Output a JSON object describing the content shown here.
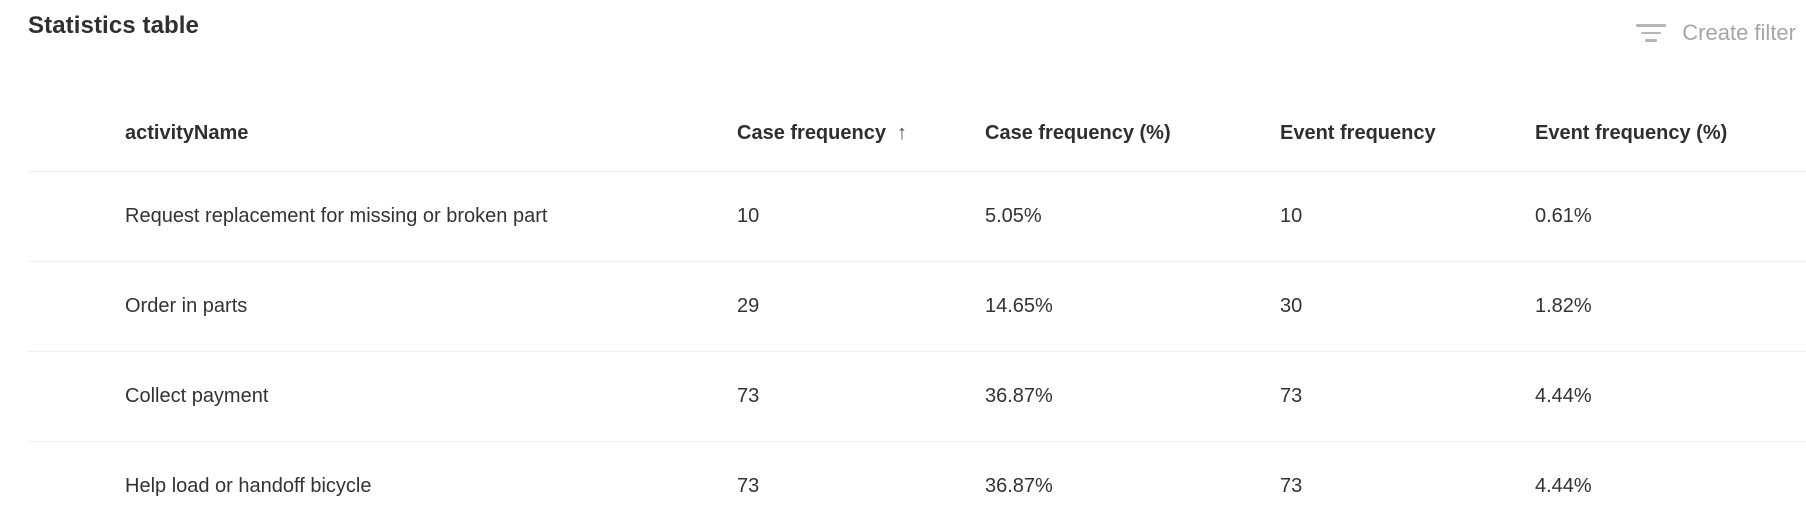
{
  "page": {
    "title": "Statistics table",
    "create_filter_label": "Create filter"
  },
  "table": {
    "columns": [
      {
        "key": "activityName",
        "label": "activityName",
        "sorted": false
      },
      {
        "key": "caseFrequency",
        "label": "Case frequency",
        "sorted": true,
        "sort_direction": "ascending",
        "sort_icon": "↑"
      },
      {
        "key": "caseFrequencyPct",
        "label": "Case frequency (%)",
        "sorted": false
      },
      {
        "key": "eventFrequency",
        "label": "Event frequency",
        "sorted": false
      },
      {
        "key": "eventFrequencyPct",
        "label": "Event frequency (%)",
        "sorted": false
      }
    ],
    "rows": [
      {
        "activityName": "Request replacement for missing or broken part",
        "caseFrequency": "10",
        "caseFrequencyPct": "5.05%",
        "eventFrequency": "10",
        "eventFrequencyPct": "0.61%"
      },
      {
        "activityName": "Order in parts",
        "caseFrequency": "29",
        "caseFrequencyPct": "14.65%",
        "eventFrequency": "30",
        "eventFrequencyPct": "1.82%"
      },
      {
        "activityName": "Collect payment",
        "caseFrequency": "73",
        "caseFrequencyPct": "36.87%",
        "eventFrequency": "73",
        "eventFrequencyPct": "4.44%"
      },
      {
        "activityName": "Help load or handoff bicycle",
        "caseFrequency": "73",
        "caseFrequencyPct": "36.87%",
        "eventFrequency": "73",
        "eventFrequencyPct": "4.44%"
      }
    ]
  },
  "colors": {
    "text": "#333333",
    "heading": "#2f2f2f",
    "muted": "#a6a6a6",
    "divider": "#f0f0f0",
    "background": "#ffffff"
  }
}
